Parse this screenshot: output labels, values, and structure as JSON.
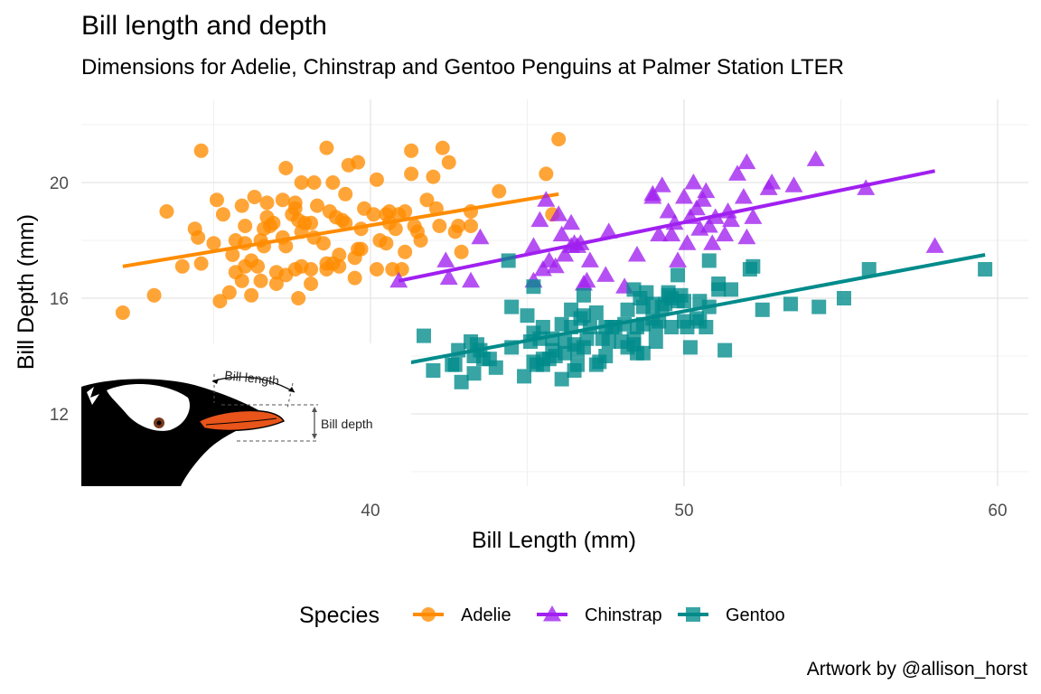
{
  "title": "Bill length and depth",
  "subtitle": "Dimensions for Adelie, Chinstrap and Gentoo Penguins at Palmer Station LTER",
  "caption": "Artwork by @allison_horst",
  "illustration": {
    "bill_length_label": "Bill length",
    "bill_depth_label": "Bill depth"
  },
  "chart_data": {
    "type": "scatter",
    "title": "Bill length and depth",
    "subtitle": "Dimensions for Adelie, Chinstrap and Gentoo Penguins at Palmer Station LTER",
    "xlabel": "Bill Length (mm)",
    "ylabel": "Bill Depth (mm)",
    "xlim": [
      31,
      61
    ],
    "ylim": [
      9.5,
      22.2
    ],
    "xticks": [
      40,
      50,
      60
    ],
    "yticks": [
      12,
      16,
      20
    ],
    "grid": true,
    "legend": {
      "title": "Species",
      "position": "bottom"
    },
    "colors": {
      "Adelie": "#FF8C00",
      "Chinstrap": "#A020F0",
      "Gentoo": "#008B8B"
    },
    "series": [
      {
        "name": "Adelie",
        "marker": "circle",
        "fit": {
          "x": [
            32.1,
            46.0
          ],
          "y": [
            17.1,
            19.6
          ]
        },
        "points": [
          [
            32.1,
            15.5
          ],
          [
            33.1,
            16.1
          ],
          [
            33.5,
            19.0
          ],
          [
            34.0,
            17.1
          ],
          [
            34.4,
            18.4
          ],
          [
            34.5,
            18.1
          ],
          [
            34.6,
            21.1
          ],
          [
            34.6,
            17.2
          ],
          [
            35.0,
            17.9
          ],
          [
            35.1,
            19.4
          ],
          [
            35.2,
            15.9
          ],
          [
            35.3,
            18.9
          ],
          [
            35.5,
            16.2
          ],
          [
            35.6,
            17.5
          ],
          [
            35.7,
            16.9
          ],
          [
            35.7,
            18.0
          ],
          [
            35.9,
            19.2
          ],
          [
            35.9,
            16.6
          ],
          [
            36.0,
            17.9
          ],
          [
            36.0,
            18.5
          ],
          [
            36.0,
            17.1
          ],
          [
            36.2,
            16.1
          ],
          [
            36.2,
            17.3
          ],
          [
            36.3,
            19.5
          ],
          [
            36.4,
            17.1
          ],
          [
            36.5,
            16.6
          ],
          [
            36.5,
            18.0
          ],
          [
            36.6,
            18.4
          ],
          [
            36.6,
            17.8
          ],
          [
            36.7,
            19.3
          ],
          [
            36.7,
            18.8
          ],
          [
            36.8,
            18.5
          ],
          [
            36.9,
            18.6
          ],
          [
            37.0,
            16.9
          ],
          [
            37.0,
            16.5
          ],
          [
            37.2,
            18.1
          ],
          [
            37.2,
            19.4
          ],
          [
            37.3,
            20.5
          ],
          [
            37.3,
            16.8
          ],
          [
            37.3,
            17.8
          ],
          [
            37.5,
            18.9
          ],
          [
            37.6,
            19.1
          ],
          [
            37.6,
            17.0
          ],
          [
            37.6,
            19.3
          ],
          [
            37.7,
            18.7
          ],
          [
            37.7,
            16.0
          ],
          [
            37.8,
            18.3
          ],
          [
            37.8,
            17.1
          ],
          [
            37.8,
            20.0
          ],
          [
            37.9,
            18.6
          ],
          [
            38.1,
            18.6
          ],
          [
            38.1,
            17.0
          ],
          [
            38.1,
            16.5
          ],
          [
            38.2,
            18.1
          ],
          [
            38.2,
            20.0
          ],
          [
            38.3,
            19.2
          ],
          [
            38.5,
            17.9
          ],
          [
            38.6,
            21.2
          ],
          [
            38.6,
            17.2
          ],
          [
            38.6,
            17.0
          ],
          [
            38.7,
            19.0
          ],
          [
            38.8,
            17.2
          ],
          [
            38.8,
            20.0
          ],
          [
            38.9,
            18.8
          ],
          [
            39.0,
            17.1
          ],
          [
            39.0,
            17.5
          ],
          [
            39.1,
            18.7
          ],
          [
            39.2,
            19.6
          ],
          [
            39.2,
            18.6
          ],
          [
            39.3,
            20.6
          ],
          [
            39.5,
            17.4
          ],
          [
            39.5,
            16.7
          ],
          [
            39.6,
            17.7
          ],
          [
            39.6,
            20.7
          ],
          [
            39.7,
            18.4
          ],
          [
            39.7,
            17.7
          ],
          [
            39.8,
            19.1
          ],
          [
            40.1,
            18.9
          ],
          [
            40.2,
            17.0
          ],
          [
            40.2,
            20.1
          ],
          [
            40.3,
            18.0
          ],
          [
            40.5,
            17.9
          ],
          [
            40.5,
            18.9
          ],
          [
            40.6,
            19.0
          ],
          [
            40.6,
            18.6
          ],
          [
            40.7,
            17.0
          ],
          [
            40.8,
            18.4
          ],
          [
            40.9,
            18.9
          ],
          [
            41.0,
            17.0
          ],
          [
            41.1,
            17.6
          ],
          [
            41.1,
            19.0
          ],
          [
            41.3,
            20.3
          ],
          [
            41.3,
            21.1
          ],
          [
            41.4,
            18.5
          ],
          [
            41.5,
            18.3
          ],
          [
            41.6,
            18.0
          ],
          [
            41.8,
            19.4
          ],
          [
            42.0,
            20.2
          ],
          [
            42.1,
            19.1
          ],
          [
            42.2,
            18.5
          ],
          [
            42.3,
            21.2
          ],
          [
            42.5,
            20.7
          ],
          [
            42.7,
            18.3
          ],
          [
            42.8,
            18.5
          ],
          [
            42.9,
            17.6
          ],
          [
            43.2,
            18.5
          ],
          [
            43.2,
            19.0
          ],
          [
            44.1,
            19.7
          ],
          [
            45.6,
            20.3
          ],
          [
            45.8,
            18.9
          ],
          [
            46.0,
            21.5
          ]
        ]
      },
      {
        "name": "Chinstrap",
        "marker": "triangle",
        "fit": {
          "x": [
            40.9,
            58.0
          ],
          "y": [
            16.6,
            20.4
          ]
        },
        "points": [
          [
            40.9,
            16.6
          ],
          [
            42.4,
            17.3
          ],
          [
            42.5,
            16.7
          ],
          [
            43.2,
            16.6
          ],
          [
            43.5,
            18.1
          ],
          [
            45.2,
            16.6
          ],
          [
            45.2,
            17.8
          ],
          [
            45.4,
            18.7
          ],
          [
            45.5,
            17.0
          ],
          [
            45.6,
            19.4
          ],
          [
            45.7,
            17.3
          ],
          [
            45.9,
            17.1
          ],
          [
            46.0,
            18.9
          ],
          [
            46.1,
            18.2
          ],
          [
            46.2,
            17.5
          ],
          [
            46.4,
            17.8
          ],
          [
            46.4,
            18.6
          ],
          [
            46.5,
            17.9
          ],
          [
            46.6,
            17.8
          ],
          [
            46.7,
            17.9
          ],
          [
            46.8,
            16.5
          ],
          [
            46.9,
            16.6
          ],
          [
            47.0,
            17.3
          ],
          [
            47.5,
            16.8
          ],
          [
            47.6,
            18.3
          ],
          [
            48.1,
            16.4
          ],
          [
            48.5,
            17.5
          ],
          [
            49.0,
            19.5
          ],
          [
            49.2,
            18.2
          ],
          [
            49.3,
            19.9
          ],
          [
            49.5,
            19.0
          ],
          [
            49.6,
            18.2
          ],
          [
            49.7,
            18.6
          ],
          [
            49.8,
            17.3
          ],
          [
            50.0,
            19.5
          ],
          [
            50.1,
            17.9
          ],
          [
            50.2,
            18.8
          ],
          [
            50.3,
            20.0
          ],
          [
            50.5,
            18.4
          ],
          [
            50.6,
            19.4
          ],
          [
            50.7,
            19.7
          ],
          [
            50.8,
            18.5
          ],
          [
            50.9,
            17.9
          ],
          [
            51.0,
            18.8
          ],
          [
            51.3,
            18.2
          ],
          [
            51.4,
            19.0
          ],
          [
            51.5,
            18.7
          ],
          [
            51.7,
            20.3
          ],
          [
            51.9,
            19.5
          ],
          [
            52.0,
            18.1
          ],
          [
            52.0,
            20.7
          ],
          [
            52.2,
            18.8
          ],
          [
            52.7,
            19.8
          ],
          [
            52.8,
            20.0
          ],
          [
            53.5,
            19.9
          ],
          [
            54.2,
            20.8
          ],
          [
            55.8,
            19.8
          ],
          [
            58.0,
            17.8
          ],
          [
            49.0,
            19.6
          ],
          [
            50.4,
            19.1
          ]
        ]
      },
      {
        "name": "Gentoo",
        "marker": "square",
        "fit": {
          "x": [
            40.9,
            59.6
          ],
          "y": [
            13.7,
            17.5
          ]
        },
        "points": [
          [
            40.9,
            13.7
          ],
          [
            41.7,
            14.7
          ],
          [
            42.0,
            13.5
          ],
          [
            42.6,
            13.7
          ],
          [
            42.7,
            13.7
          ],
          [
            42.8,
            14.2
          ],
          [
            42.9,
            13.1
          ],
          [
            43.2,
            14.5
          ],
          [
            43.3,
            13.4
          ],
          [
            43.3,
            14.0
          ],
          [
            43.4,
            14.4
          ],
          [
            43.5,
            14.2
          ],
          [
            43.6,
            13.9
          ],
          [
            43.8,
            13.9
          ],
          [
            44.0,
            13.6
          ],
          [
            44.4,
            17.3
          ],
          [
            44.5,
            14.3
          ],
          [
            44.5,
            15.7
          ],
          [
            44.9,
            13.3
          ],
          [
            45.0,
            15.4
          ],
          [
            45.1,
            14.5
          ],
          [
            45.2,
            13.8
          ],
          [
            45.2,
            14.8
          ],
          [
            45.2,
            16.4
          ],
          [
            45.3,
            13.7
          ],
          [
            45.4,
            14.6
          ],
          [
            45.5,
            13.7
          ],
          [
            45.5,
            15.0
          ],
          [
            45.5,
            13.9
          ],
          [
            45.7,
            13.9
          ],
          [
            45.8,
            14.2
          ],
          [
            45.8,
            14.6
          ],
          [
            46.1,
            13.2
          ],
          [
            46.2,
            14.1
          ],
          [
            46.2,
            14.5
          ],
          [
            46.4,
            15.0
          ],
          [
            46.4,
            15.6
          ],
          [
            46.5,
            13.5
          ],
          [
            46.5,
            14.4
          ],
          [
            46.6,
            14.2
          ],
          [
            46.7,
            15.3
          ],
          [
            46.8,
            14.3
          ],
          [
            46.8,
            15.4
          ],
          [
            46.8,
            16.1
          ],
          [
            46.9,
            14.6
          ],
          [
            47.2,
            13.7
          ],
          [
            47.2,
            15.5
          ],
          [
            47.3,
            13.8
          ],
          [
            47.4,
            14.6
          ],
          [
            47.5,
            14.0
          ],
          [
            47.5,
            15.0
          ],
          [
            47.6,
            14.5
          ],
          [
            47.7,
            15.0
          ],
          [
            47.8,
            15.0
          ],
          [
            48.1,
            15.1
          ],
          [
            48.2,
            14.3
          ],
          [
            48.2,
            15.6
          ],
          [
            48.4,
            14.4
          ],
          [
            48.4,
            14.6
          ],
          [
            48.4,
            16.3
          ],
          [
            48.5,
            14.1
          ],
          [
            48.5,
            15.0
          ],
          [
            48.6,
            16.0
          ],
          [
            48.7,
            14.1
          ],
          [
            48.7,
            15.1
          ],
          [
            48.7,
            15.7
          ],
          [
            48.8,
            16.2
          ],
          [
            49.0,
            15.3
          ],
          [
            49.1,
            14.5
          ],
          [
            49.1,
            15.0
          ],
          [
            49.2,
            15.2
          ],
          [
            49.3,
            15.7
          ],
          [
            49.4,
            15.8
          ],
          [
            49.5,
            16.2
          ],
          [
            49.5,
            16.1
          ],
          [
            49.6,
            15.0
          ],
          [
            49.6,
            16.0
          ],
          [
            49.8,
            15.9
          ],
          [
            49.8,
            16.8
          ],
          [
            49.9,
            16.1
          ],
          [
            50.0,
            15.2
          ],
          [
            50.0,
            15.9
          ],
          [
            50.1,
            15.0
          ],
          [
            50.2,
            14.3
          ],
          [
            50.4,
            15.3
          ],
          [
            50.5,
            15.2
          ],
          [
            50.5,
            15.9
          ],
          [
            50.7,
            15.0
          ],
          [
            50.8,
            15.7
          ],
          [
            50.8,
            17.3
          ],
          [
            51.1,
            16.3
          ],
          [
            51.1,
            16.5
          ],
          [
            51.3,
            14.2
          ],
          [
            51.5,
            16.3
          ],
          [
            52.1,
            17.0
          ],
          [
            52.2,
            17.1
          ],
          [
            52.5,
            15.6
          ],
          [
            53.4,
            15.8
          ],
          [
            54.3,
            15.7
          ],
          [
            55.1,
            16.0
          ],
          [
            55.9,
            17.0
          ],
          [
            59.6,
            17.0
          ],
          [
            46.1,
            15.1
          ],
          [
            47.0,
            15.0
          ],
          [
            48.0,
            14.5
          ],
          [
            49.0,
            15.8
          ],
          [
            45.9,
            14.0
          ],
          [
            46.6,
            13.7
          ]
        ]
      }
    ]
  }
}
